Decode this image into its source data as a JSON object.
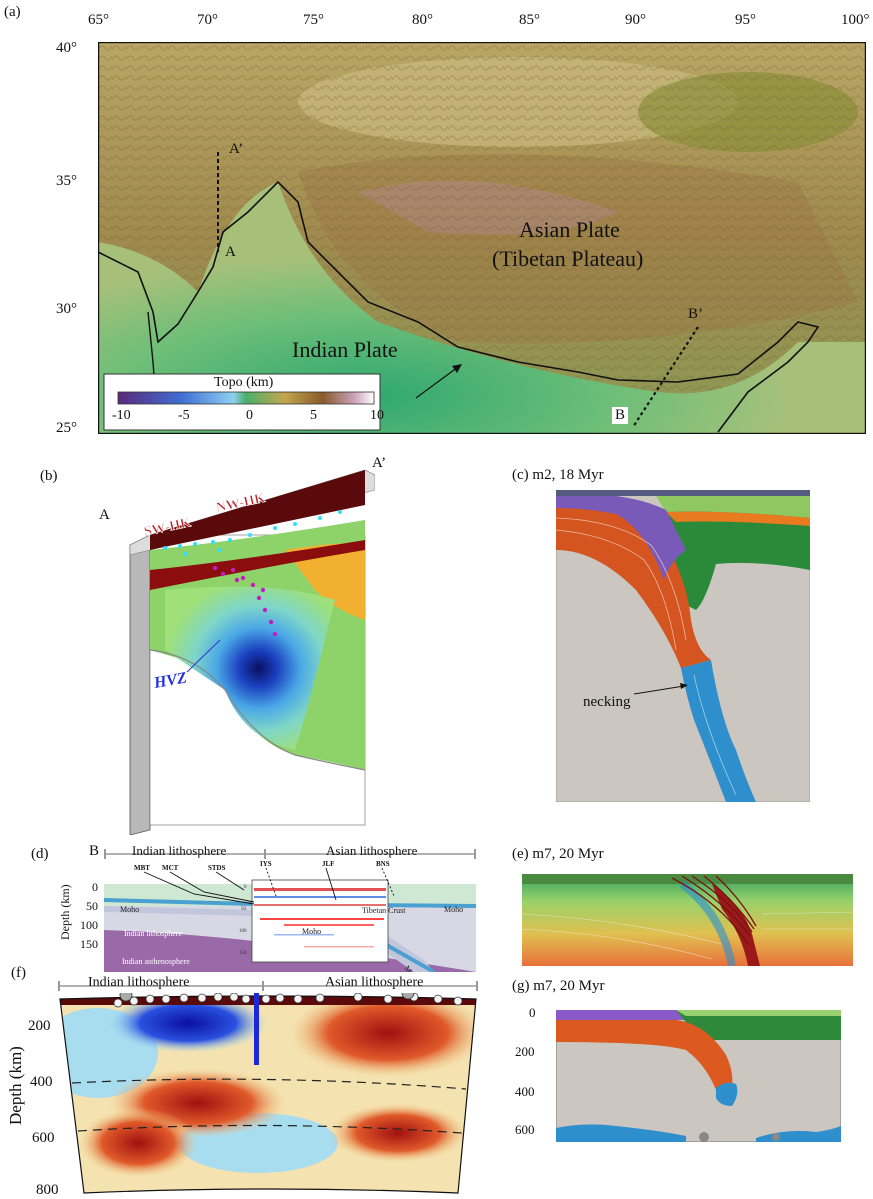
{
  "panel_a": {
    "label": "(a)",
    "lon_ticks": [
      "65°",
      "70°",
      "75°",
      "80°",
      "85°",
      "90°",
      "95°",
      "100°"
    ],
    "lat_ticks": [
      "40°",
      "35°",
      "30°",
      "25°"
    ],
    "asian_plate_line1": "Asian Plate",
    "asian_plate_line2": "(Tibetan Plateau)",
    "indian_plate": "Indian Plate",
    "point_a_prime": "A’",
    "point_a": "A",
    "point_b_prime": "B’",
    "point_b": "B",
    "colorbar_title": "Topo (km)",
    "colorbar_ticks": [
      "-10",
      "-5",
      "0",
      "5",
      "10"
    ]
  },
  "panel_b": {
    "label": "(b)",
    "point_a": "A",
    "point_a_prime": "A’",
    "sw_hk": "SW-HK",
    "nw_hk": "NW-HK",
    "hvz": "HVZ"
  },
  "panel_c": {
    "label": "(c) m2, 18 Myr",
    "necking": "necking"
  },
  "panel_d": {
    "label": "(d)",
    "point_b": "B",
    "indian_litho": "Indian lithosphere",
    "asian_litho": "Asian lithosphere",
    "ylabel": "Depth (km)",
    "yticks": [
      "0",
      "50",
      "100",
      "150"
    ],
    "faults": [
      "MBT",
      "MCT",
      "STDS",
      "IYS",
      "JLF",
      "BNS"
    ],
    "moho": "Moho",
    "moho_center": "Moho",
    "moho_right": "Moho",
    "moho_slab": "Moho",
    "tibetan_crust": "Tibetan Crust",
    "indian_lithosphere_inner": "Indian lithosphere",
    "indian_asthenosphere": "Indian asthenosphere",
    "inner_ticks": [
      "0",
      "50",
      "100",
      "150"
    ]
  },
  "panel_e": {
    "label": "(e) m7, 20 Myr"
  },
  "panel_f": {
    "label": "(f)",
    "indian_litho": "Indian lithosphere",
    "asian_litho": "Asian lithosphere",
    "ylabel": "Depth (km)",
    "yticks": [
      "200",
      "400",
      "600",
      "800"
    ]
  },
  "panel_g": {
    "label": "(g) m7, 20 Myr",
    "yticks": [
      "0",
      "200",
      "400",
      "600"
    ]
  }
}
